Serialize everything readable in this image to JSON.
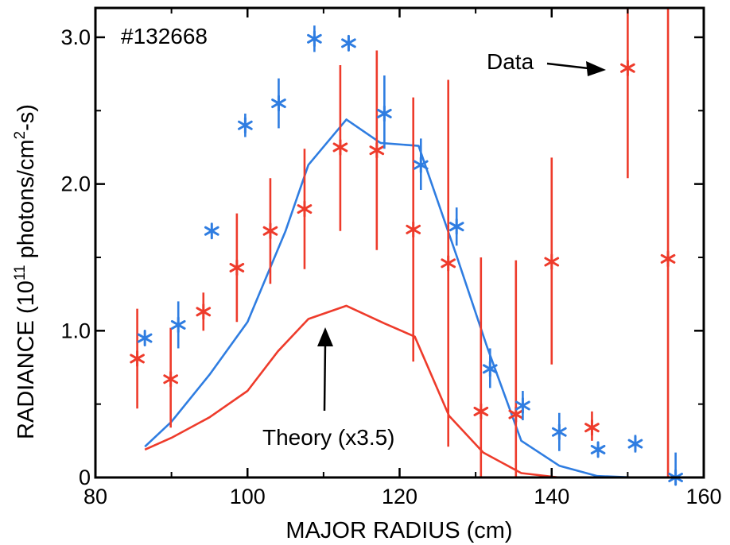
{
  "chart_data": {
    "type": "scatter",
    "xlabel": "MAJOR RADIUS (cm)",
    "ylabel_parts": [
      "RADIANCE (10",
      "11",
      " photons/cm",
      "2",
      "-s)"
    ],
    "xlim": [
      80,
      160
    ],
    "ylim": [
      0,
      3.2
    ],
    "x_ticks": [
      80,
      100,
      120,
      140,
      160
    ],
    "x_tick_labels": [
      "80",
      "100",
      "120",
      "140",
      "160"
    ],
    "y_ticks": [
      0,
      1.0,
      2.0,
      3.0
    ],
    "y_tick_labels": [
      "0",
      "1.0",
      "2.0",
      "3.0"
    ],
    "grid": false,
    "colors": {
      "red": "#ee3b2b",
      "blue": "#2f7de1",
      "axis": "#000000"
    },
    "annotations": {
      "shot": "#132668",
      "data_label": "Data",
      "theory_label": "Theory (x3.5)"
    },
    "series": [
      {
        "kind": "points",
        "color": "red",
        "points": [
          {
            "x": 85.5,
            "y": 0.81,
            "lo": 0.47,
            "hi": 1.15
          },
          {
            "x": 89.9,
            "y": 0.67,
            "lo": 0.34,
            "hi": 1.02
          },
          {
            "x": 94.2,
            "y": 1.13,
            "lo": 1.0,
            "hi": 1.26
          },
          {
            "x": 98.6,
            "y": 1.43,
            "lo": 1.06,
            "hi": 1.8
          },
          {
            "x": 103.0,
            "y": 1.68,
            "lo": 1.32,
            "hi": 2.04
          },
          {
            "x": 107.5,
            "y": 1.83,
            "lo": 1.42,
            "hi": 2.24
          },
          {
            "x": 112.2,
            "y": 2.25,
            "lo": 1.68,
            "hi": 2.81
          },
          {
            "x": 117.0,
            "y": 2.23,
            "lo": 1.55,
            "hi": 2.91
          },
          {
            "x": 121.8,
            "y": 1.69,
            "lo": 0.79,
            "hi": 2.59
          },
          {
            "x": 126.4,
            "y": 1.46,
            "lo": 0.21,
            "hi": 2.71
          },
          {
            "x": 130.7,
            "y": 0.45,
            "lo": 0.0,
            "hi": 1.5
          },
          {
            "x": 135.3,
            "y": 0.43,
            "lo": 0.0,
            "hi": 1.48
          },
          {
            "x": 140.0,
            "y": 1.47,
            "lo": 0.77,
            "hi": 2.18
          },
          {
            "x": 145.3,
            "y": 0.34,
            "lo": 0.25,
            "hi": 0.45
          },
          {
            "x": 150.0,
            "y": 2.79,
            "lo": 2.04,
            "hi": 3.2
          },
          {
            "x": 155.3,
            "y": 1.49,
            "lo": 0.0,
            "hi": 3.2
          }
        ]
      },
      {
        "kind": "points",
        "color": "blue",
        "points": [
          {
            "x": 86.5,
            "y": 0.95,
            "lo": 0.95,
            "hi": 0.95
          },
          {
            "x": 90.9,
            "y": 1.04,
            "lo": 0.88,
            "hi": 1.2
          },
          {
            "x": 95.3,
            "y": 1.68,
            "lo": 1.68,
            "hi": 1.68
          },
          {
            "x": 99.7,
            "y": 2.4,
            "lo": 2.32,
            "hi": 2.48
          },
          {
            "x": 104.1,
            "y": 2.55,
            "lo": 2.38,
            "hi": 2.72
          },
          {
            "x": 108.8,
            "y": 2.99,
            "lo": 2.9,
            "hi": 3.08
          },
          {
            "x": 113.3,
            "y": 2.96,
            "lo": 2.96,
            "hi": 2.96
          },
          {
            "x": 118.0,
            "y": 2.48,
            "lo": 2.24,
            "hi": 2.74
          },
          {
            "x": 122.8,
            "y": 2.13,
            "lo": 1.96,
            "hi": 2.31
          },
          {
            "x": 127.5,
            "y": 1.71,
            "lo": 1.58,
            "hi": 1.84
          },
          {
            "x": 131.9,
            "y": 0.74,
            "lo": 0.61,
            "hi": 0.88
          },
          {
            "x": 136.2,
            "y": 0.49,
            "lo": 0.39,
            "hi": 0.59
          },
          {
            "x": 141.0,
            "y": 0.31,
            "lo": 0.18,
            "hi": 0.44
          },
          {
            "x": 146.1,
            "y": 0.19,
            "lo": 0.19,
            "hi": 0.19
          },
          {
            "x": 151.0,
            "y": 0.23,
            "lo": 0.17,
            "hi": 0.29
          },
          {
            "x": 156.3,
            "y": 0.0,
            "lo": 0.0,
            "hi": 0.17
          }
        ]
      },
      {
        "kind": "line",
        "color": "blue",
        "x": [
          86.5,
          90.0,
          95.0,
          100.0,
          105.0,
          108.0,
          113.0,
          117.5,
          122.5,
          127.5,
          131.5,
          136.0,
          141.0,
          146.0,
          151.0,
          156.0
        ],
        "y": [
          0.21,
          0.38,
          0.7,
          1.06,
          1.68,
          2.13,
          2.44,
          2.28,
          2.26,
          1.51,
          0.89,
          0.25,
          0.08,
          0.01,
          0.0,
          0.0
        ]
      },
      {
        "kind": "line",
        "color": "red",
        "x": [
          86.5,
          90.0,
          95.0,
          100.0,
          104.0,
          108.0,
          113.0,
          118.0,
          122.0,
          126.5,
          131.0,
          136.0,
          141.0,
          146.0,
          151.0,
          156.0
        ],
        "y": [
          0.19,
          0.27,
          0.41,
          0.59,
          0.86,
          1.08,
          1.17,
          1.05,
          0.96,
          0.42,
          0.17,
          0.03,
          0.0,
          0.0,
          0.0,
          0.0
        ]
      }
    ]
  }
}
